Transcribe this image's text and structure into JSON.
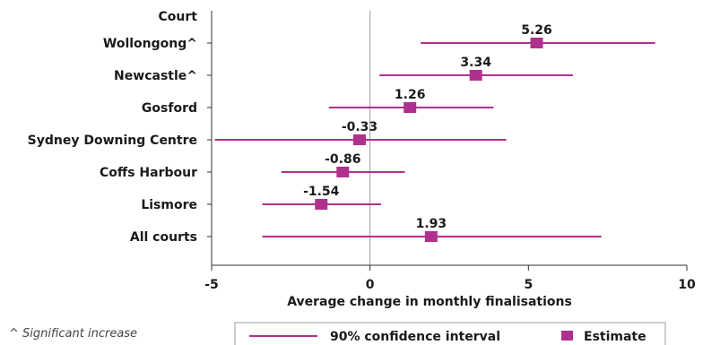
{
  "chart_data": {
    "type": "scatter",
    "orientation": "horizontal",
    "column_header": "Court",
    "categories": [
      "Wollongong^",
      "Newcastle^",
      "Gosford",
      "Sydney Downing Centre",
      "Coffs Harbour",
      "Lismore",
      "All courts"
    ],
    "estimates": [
      5.26,
      3.34,
      1.26,
      -0.33,
      -0.86,
      -1.54,
      1.93
    ],
    "data_labels": [
      "5.26",
      "3.34",
      "1.26",
      "-0.33",
      "-0.86",
      "-1.54",
      "1.93"
    ],
    "ci_low": [
      1.6,
      0.3,
      -1.3,
      -4.9,
      -2.8,
      -3.4,
      -3.4
    ],
    "ci_high": [
      9.0,
      6.4,
      3.9,
      4.3,
      1.1,
      0.35,
      7.3
    ],
    "xlabel": "Average change in monthly finalisations",
    "xlim": [
      -5,
      10
    ],
    "xticks": [
      -5,
      0,
      5,
      10
    ],
    "xtick_labels": [
      "-5",
      "0",
      "5",
      "10"
    ],
    "reference_line": 0,
    "legend": {
      "placement": "bottom",
      "items": [
        {
          "label": "90% confidence interval",
          "symbol": "line"
        },
        {
          "label": "Estimate",
          "symbol": "square"
        }
      ]
    },
    "colors": {
      "series": "#b0308e",
      "axis": "#333333",
      "zero_line": "#999999",
      "legend_border": "#999999"
    }
  },
  "footnote": "^ Significant increase"
}
